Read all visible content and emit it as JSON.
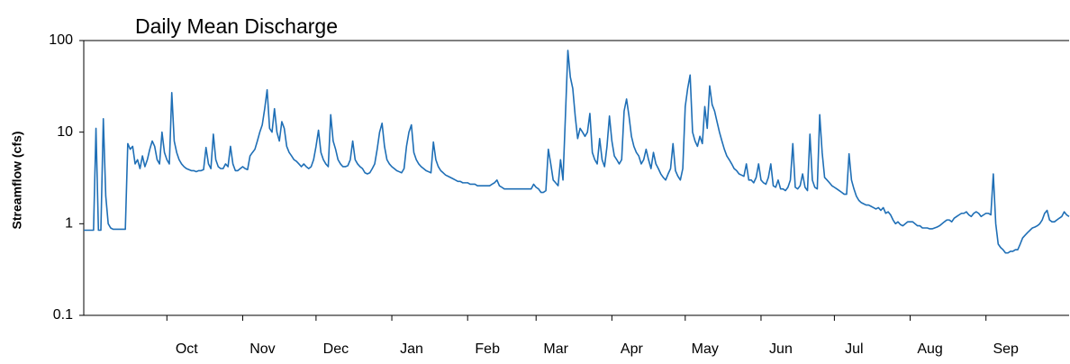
{
  "chart_data": {
    "type": "line",
    "title": "Daily Mean Discharge",
    "y_label": "Streamflow (cfs)",
    "yscale": "log",
    "ylim": [
      0.1,
      100
    ],
    "yticks": [
      0.1,
      1,
      10,
      100
    ],
    "xlim": [
      0,
      403
    ],
    "xticks": [
      {
        "value": 34,
        "label": "Oct"
      },
      {
        "value": 65,
        "label": "Nov"
      },
      {
        "value": 95,
        "label": "Dec"
      },
      {
        "value": 126,
        "label": "Jan"
      },
      {
        "value": 157,
        "label": "Feb"
      },
      {
        "value": 185,
        "label": "Mar"
      },
      {
        "value": 216,
        "label": "Apr"
      },
      {
        "value": 246,
        "label": "May"
      },
      {
        "value": 277,
        "label": "Jun"
      },
      {
        "value": 307,
        "label": "Jul"
      },
      {
        "value": 338,
        "label": "Aug"
      },
      {
        "value": 369,
        "label": "Sep"
      }
    ],
    "color": "#1f6fb6",
    "values": [
      0.85,
      0.85,
      0.85,
      0.85,
      0.85,
      11,
      0.85,
      0.85,
      14,
      2,
      1.0,
      0.9,
      0.87,
      0.87,
      0.87,
      0.87,
      0.87,
      0.87,
      7.5,
      6.5,
      7,
      4.5,
      5,
      4,
      5.5,
      4.2,
      5,
      6.5,
      8,
      7,
      5,
      4.5,
      10,
      6,
      5,
      4.5,
      27,
      8,
      6,
      5,
      4.5,
      4.2,
      4,
      3.9,
      3.8,
      3.8,
      3.7,
      3.8,
      3.8,
      3.9,
      6.8,
      4.5,
      4,
      9.5,
      5,
      4.2,
      4,
      4,
      4.5,
      4.2,
      7,
      4.5,
      3.8,
      3.8,
      4,
      4.2,
      4,
      3.9,
      5.5,
      6,
      6.5,
      8,
      10,
      12,
      18,
      29,
      11,
      10,
      18,
      10,
      8,
      13,
      11,
      7,
      6,
      5.5,
      5,
      4.8,
      4.5,
      4.2,
      4.5,
      4.2,
      4,
      4.2,
      5,
      7,
      10.5,
      6,
      5,
      4.5,
      4.2,
      15.5,
      8,
      6.5,
      5,
      4.5,
      4.2,
      4.2,
      4.3,
      5,
      8,
      5,
      4.5,
      4.2,
      4,
      3.6,
      3.5,
      3.6,
      4,
      4.5,
      6.5,
      10,
      12.5,
      7,
      5,
      4.5,
      4.2,
      4,
      3.8,
      3.7,
      3.6,
      4,
      7,
      10,
      12,
      6,
      5,
      4.5,
      4.2,
      4,
      3.8,
      3.7,
      3.6,
      7.8,
      5,
      4.2,
      3.8,
      3.6,
      3.4,
      3.3,
      3.2,
      3.1,
      3,
      2.9,
      2.9,
      2.8,
      2.8,
      2.8,
      2.7,
      2.7,
      2.7,
      2.6,
      2.6,
      2.6,
      2.6,
      2.6,
      2.6,
      2.7,
      2.8,
      3,
      2.6,
      2.5,
      2.4,
      2.4,
      2.4,
      2.4,
      2.4,
      2.4,
      2.4,
      2.4,
      2.4,
      2.4,
      2.4,
      2.4,
      2.7,
      2.5,
      2.4,
      2.2,
      2.2,
      2.3,
      6.5,
      4.5,
      3,
      2.8,
      2.6,
      5,
      3,
      15,
      78,
      40,
      30,
      15,
      8.5,
      11,
      10,
      9,
      10,
      16,
      6,
      5,
      4.5,
      8.5,
      5,
      4.2,
      7,
      15,
      8,
      5.5,
      5,
      4.5,
      5,
      17,
      23,
      15,
      9,
      7,
      6,
      5.5,
      4.5,
      5,
      6.5,
      5,
      4,
      6,
      4.5,
      4,
      3.5,
      3.2,
      3,
      3.5,
      4,
      7.5,
      3.8,
      3.3,
      3,
      4,
      19,
      30,
      42,
      10,
      8,
      7,
      9,
      7.5,
      19,
      11,
      32,
      20,
      17,
      13,
      10,
      8,
      6.5,
      5.5,
      5,
      4.5,
      4,
      3.8,
      3.5,
      3.4,
      3.3,
      4.5,
      3,
      3,
      2.8,
      3.2,
      4.5,
      3,
      2.8,
      2.7,
      3.2,
      4.5,
      2.6,
      2.5,
      3,
      2.4,
      2.4,
      2.3,
      2.5,
      3,
      7.5,
      2.5,
      2.4,
      2.6,
      3.5,
      2.5,
      2.3,
      9.5,
      3,
      2.5,
      2.4,
      15.5,
      6,
      3.2,
      3,
      2.8,
      2.6,
      2.5,
      2.4,
      2.3,
      2.2,
      2.1,
      2.1,
      5.8,
      3,
      2.4,
      2,
      1.8,
      1.7,
      1.65,
      1.6,
      1.6,
      1.55,
      1.5,
      1.45,
      1.5,
      1.4,
      1.5,
      1.3,
      1.35,
      1.25,
      1.1,
      1.0,
      1.05,
      0.98,
      0.95,
      1,
      1.05,
      1.05,
      1.05,
      1,
      0.95,
      0.95,
      0.9,
      0.9,
      0.9,
      0.88,
      0.88,
      0.9,
      0.92,
      0.95,
      1,
      1.05,
      1.1,
      1.1,
      1.05,
      1.15,
      1.2,
      1.25,
      1.3,
      1.3,
      1.35,
      1.25,
      1.2,
      1.3,
      1.35,
      1.3,
      1.2,
      1.25,
      1.3,
      1.3,
      1.25,
      3.5,
      1,
      0.6,
      0.55,
      0.52,
      0.48,
      0.48,
      0.5,
      0.5,
      0.52,
      0.52,
      0.6,
      0.7,
      0.75,
      0.8,
      0.85,
      0.9,
      0.92,
      0.95,
      1,
      1.1,
      1.3,
      1.4,
      1.1,
      1.05,
      1.05,
      1.1,
      1.15,
      1.2,
      1.35,
      1.25,
      1.2
    ]
  }
}
